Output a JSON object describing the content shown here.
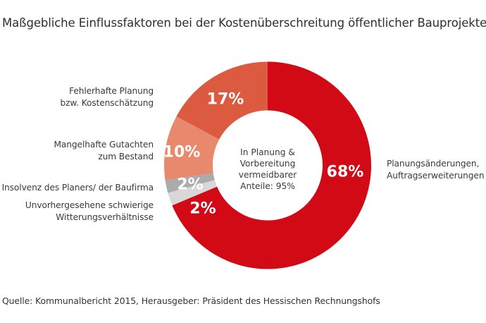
{
  "chart_data": {
    "type": "pie",
    "variant": "donut",
    "title": "Maßgebliche Einflussfaktoren bei der Kostenüberschreitung öffentlicher Bauprojekte",
    "center_label": [
      "In Planung &",
      "Vorbereitung",
      "vermeidbarer",
      "Anteile: 95%"
    ],
    "slices": [
      {
        "label": "Planungsänderungen, Auftragserweiterungen",
        "label_lines": [
          "Planungsänderungen,",
          "Auftragserweiterungen"
        ],
        "value": 68,
        "value_label": "68%",
        "color": "#d10a16"
      },
      {
        "label": "Unvorhergesehene schwierige Witterungsverhältnisse",
        "label_lines": [
          "Unvorhergesehene schwierige",
          "Witterungsverhältnisse"
        ],
        "value": 2,
        "value_label": "2%",
        "color": "#d8d8d8"
      },
      {
        "label": "Insolvenz des Planers/ der Baufirma",
        "label_lines": [
          "Insolvenz des Planers/ der Baufirma"
        ],
        "value": 2,
        "value_label": "2%",
        "color": "#ababab"
      },
      {
        "label": "Mangelhafte Gutachten zum Bestand",
        "label_lines": [
          "Mangelhafte Gutachten",
          "zum Bestand"
        ],
        "value": 10,
        "value_label": "10%",
        "color": "#e8896d"
      },
      {
        "label": "Fehlerhafte Planung bzw. Kostenschätzung",
        "label_lines": [
          "Fehlerhafte Planung",
          "bzw. Kostenschätzung"
        ],
        "value": 17,
        "value_label": "17%",
        "color": "#dc5a3f"
      }
    ],
    "start": "top",
    "direction": "clockwise",
    "legend": "labels beside slices"
  },
  "source": "Quelle: Kommunalbericht 2015, Herausgeber: Präsident des Hessischen Rechnungshofs"
}
